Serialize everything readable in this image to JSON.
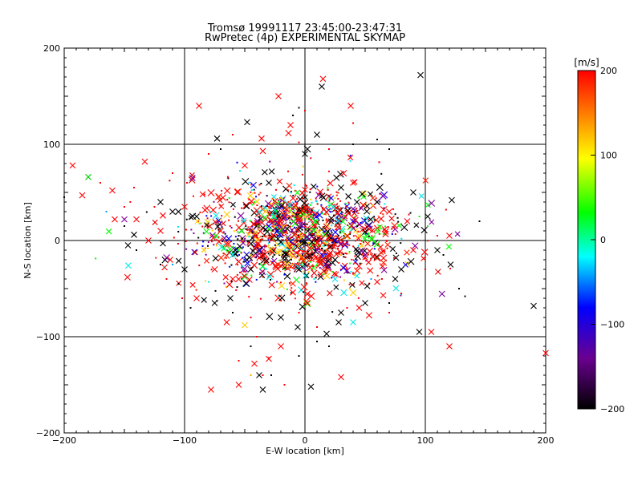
{
  "chart_data": {
    "type": "scatter",
    "title": "Tromsø 19991117 23:45:00-23:47:31",
    "subtitle": "RwPretec (4p) EXPERIMENTAL SKYMAP",
    "xlabel": "E-W location [km]",
    "ylabel": "N-S location [km]",
    "xlim": [
      -200,
      200
    ],
    "ylim": [
      -200,
      200
    ],
    "xticks": [
      "-200",
      "-100",
      "0",
      "100",
      "200"
    ],
    "yticks": [
      "-200",
      "-100",
      "0",
      "100",
      "200"
    ],
    "grid": true,
    "colorbar": {
      "label": "[m/s]",
      "range": [
        -200,
        200
      ],
      "ticks": [
        "200",
        "100",
        "0",
        "-100",
        "-200"
      ],
      "colormap": [
        "#000000",
        "#6a0090",
        "#0000ff",
        "#00ffff",
        "#00ff00",
        "#ffff00",
        "#ff0000"
      ]
    },
    "series": [
      {
        "marker": "x",
        "color": "#ff0000",
        "points": [
          [
            -88,
            140
          ],
          [
            -193,
            78
          ],
          [
            -160,
            52
          ],
          [
            -133,
            82
          ],
          [
            -185,
            47
          ],
          [
            -78,
            -155
          ],
          [
            -42,
            -128
          ],
          [
            -55,
            -150
          ],
          [
            -20,
            -110
          ],
          [
            -30,
            -123
          ],
          [
            30,
            -142
          ],
          [
            -65,
            -85
          ],
          [
            -90,
            -60
          ],
          [
            -100,
            35
          ],
          [
            -112,
            -20
          ],
          [
            -118,
            26
          ],
          [
            15,
            168
          ],
          [
            -22,
            150
          ],
          [
            38,
            140
          ],
          [
            -36,
            106
          ],
          [
            -12,
            120
          ],
          [
            65,
            -57
          ],
          [
            60,
            -43
          ],
          [
            45,
            -70
          ],
          [
            -10,
            -54
          ],
          [
            2,
            -65
          ],
          [
            -130,
            0
          ],
          [
            120,
            5
          ],
          [
            -120,
            10
          ],
          [
            -140,
            22
          ],
          [
            -158,
            22
          ],
          [
            -85,
            48
          ],
          [
            -50,
            78
          ],
          [
            -35,
            93
          ],
          [
            105,
            -95
          ],
          [
            200,
            -117
          ],
          [
            120,
            -110
          ],
          [
            -60,
            -40
          ],
          [
            -70,
            10
          ],
          [
            -75,
            -30
          ],
          [
            40,
            60
          ],
          [
            70,
            30
          ],
          [
            85,
            20
          ],
          [
            90,
            -10
          ]
        ]
      },
      {
        "marker": "x",
        "color": "#000000",
        "points": [
          [
            96,
            172
          ],
          [
            14,
            160
          ],
          [
            -48,
            123
          ],
          [
            -73,
            106
          ],
          [
            -38,
            -140
          ],
          [
            -35,
            -155
          ],
          [
            5,
            -152
          ],
          [
            -6,
            -90
          ],
          [
            28,
            -85
          ],
          [
            18,
            -97
          ],
          [
            95,
            -95
          ],
          [
            122,
            42
          ],
          [
            121,
            -25
          ],
          [
            102,
            25
          ],
          [
            110,
            -10
          ],
          [
            190,
            -68
          ],
          [
            -147,
            -5
          ],
          [
            -142,
            6
          ],
          [
            -118,
            -3
          ],
          [
            -110,
            30
          ],
          [
            -75,
            -65
          ],
          [
            -62,
            -60
          ],
          [
            -20,
            -80
          ],
          [
            30,
            -75
          ],
          [
            50,
            -65
          ],
          [
            75,
            -40
          ],
          [
            60,
            40
          ],
          [
            30,
            55
          ],
          [
            -30,
            60
          ],
          [
            0,
            90
          ],
          [
            10,
            110
          ],
          [
            -120,
            40
          ],
          [
            -100,
            -30
          ],
          [
            80,
            -30
          ],
          [
            90,
            50
          ],
          [
            -90,
            25
          ],
          [
            -58,
            -10
          ],
          [
            -45,
            -30
          ],
          [
            -5,
            -30
          ],
          [
            25,
            -20
          ]
        ]
      },
      {
        "marker": "x",
        "color": "#00e8e8",
        "points": [
          [
            40,
            -85
          ],
          [
            -60,
            -15
          ],
          [
            25,
            -40
          ]
        ]
      },
      {
        "marker": "x",
        "color": "#00d000",
        "points": [
          [
            -180,
            66
          ],
          [
            -20,
            10
          ],
          [
            5,
            25
          ]
        ]
      },
      {
        "marker": "x",
        "color": "#ffcc00",
        "points": [
          [
            -50,
            -88
          ],
          [
            45,
            5
          ],
          [
            -15,
            -5
          ]
        ]
      },
      {
        "marker": "x",
        "color": "#0000ff",
        "points": [
          [
            25,
            0
          ],
          [
            40,
            20
          ],
          [
            -30,
            15
          ]
        ]
      },
      {
        "marker": "x",
        "color": "#7f00a0",
        "points": [
          [
            -150,
            22
          ],
          [
            10,
            -10
          ],
          [
            50,
            -15
          ]
        ]
      },
      {
        "marker": "dot",
        "color": "#ff0000",
        "points": [
          [
            -170,
            60
          ],
          [
            -142,
            55
          ],
          [
            -110,
            70
          ],
          [
            -150,
            35
          ],
          [
            -125,
            35
          ],
          [
            -30,
            -122
          ],
          [
            -40,
            -100
          ],
          [
            -5,
            -75
          ],
          [
            10,
            -90
          ],
          [
            35,
            -70
          ],
          [
            70,
            -75
          ],
          [
            80,
            -55
          ],
          [
            100,
            -30
          ],
          [
            110,
            5
          ],
          [
            -45,
            -80
          ],
          [
            -55,
            -125
          ],
          [
            -35,
            -140
          ],
          [
            -17,
            -150
          ],
          [
            -60,
            110
          ],
          [
            40,
            122
          ],
          [
            0,
            135
          ],
          [
            20,
            95
          ],
          [
            -5,
            102
          ],
          [
            -80,
            90
          ],
          [
            -98,
            60
          ],
          [
            -102,
            -60
          ],
          [
            -115,
            -40
          ]
        ]
      },
      {
        "marker": "dot",
        "color": "#000000",
        "points": [
          [
            -200,
            45
          ],
          [
            -150,
            15
          ],
          [
            -140,
            -10
          ],
          [
            -120,
            -25
          ],
          [
            -105,
            -45
          ],
          [
            -95,
            -70
          ],
          [
            145,
            20
          ],
          [
            128,
            -50
          ],
          [
            20,
            -110
          ],
          [
            10,
            -105
          ],
          [
            -5,
            -120
          ],
          [
            -28,
            -140
          ],
          [
            -45,
            -110
          ],
          [
            -10,
            130
          ],
          [
            -5,
            138
          ],
          [
            60,
            105
          ],
          [
            70,
            95
          ],
          [
            40,
            100
          ],
          [
            -70,
            95
          ],
          [
            -60,
            -75
          ],
          [
            70,
            -65
          ],
          [
            115,
            -15
          ],
          [
            133,
            -58
          ]
        ]
      },
      {
        "marker": "dot",
        "color": "#00a0ff",
        "points": [
          [
            -165,
            30
          ],
          [
            -110,
            -25
          ],
          [
            55,
            -40
          ]
        ]
      },
      {
        "marker": "dot",
        "color": "#ffaa00",
        "points": [
          [
            -45,
            -140
          ],
          [
            -10,
            -25
          ],
          [
            30,
            -15
          ]
        ]
      }
    ],
    "cluster": {
      "center": [
        -5,
        5
      ],
      "spread_km": [
        42,
        28
      ],
      "colors": [
        "#ff0000",
        "#e00000",
        "#000000",
        "#ff0000",
        "#000000",
        "#ff2000",
        "#ff0000",
        "#000000",
        "#ff0000",
        "#ffcc00",
        "#0000ff",
        "#00ff00",
        "#00e8e8",
        "#7f00a0"
      ]
    }
  }
}
